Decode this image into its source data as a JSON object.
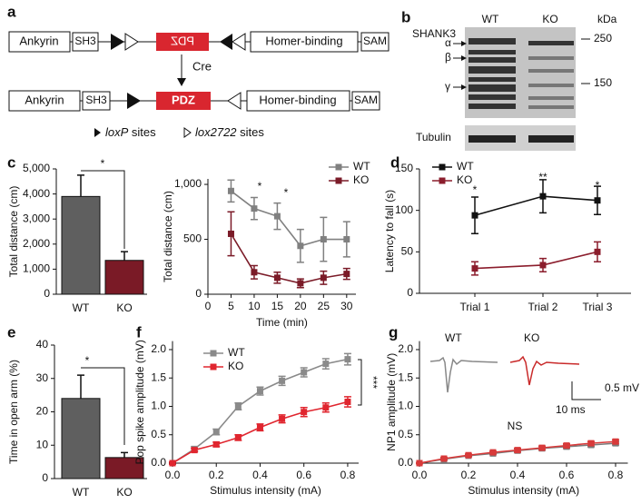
{
  "panel_labels": [
    "a",
    "b",
    "c",
    "d",
    "e",
    "f",
    "g"
  ],
  "diagram": {
    "top": [
      "Ankyrin",
      "SH3",
      "PDZ",
      "Homer-binding",
      "SAM"
    ],
    "enzyme": "Cre",
    "bottom": [
      "Ankyrin",
      "SH3",
      "PDZ",
      "Homer-binding",
      "SAM"
    ],
    "legend": [
      {
        "name": "loxP",
        "suffix": "sites"
      },
      {
        "name": "lox2722",
        "suffix": "sites"
      }
    ]
  },
  "blot": {
    "lanes": [
      "WT",
      "KO"
    ],
    "unit": "kDa",
    "protein": "SHANK3",
    "isoforms": [
      "α",
      "β",
      "γ"
    ],
    "markers": [
      "250",
      "150"
    ],
    "control": "Tubulin"
  },
  "chart_data": [
    {
      "type": "bar",
      "categories": [
        "WT",
        "KO"
      ],
      "values": [
        3900,
        1350
      ],
      "errors": [
        850,
        350
      ],
      "colors": [
        "#5f5f5f",
        "#7a1a26"
      ],
      "y_label": "Total distance (cm)",
      "ylim": [
        0,
        5000
      ],
      "yticks": [
        0,
        {
          "value": 1000,
          "label": "1,000"
        },
        {
          "value": 2000,
          "label": "2,000"
        },
        {
          "value": 3000,
          "label": "3,000"
        },
        {
          "value": 4000,
          "label": "4,000"
        },
        {
          "value": 5000,
          "label": "5,000"
        }
      ],
      "annotations": [
        "*"
      ]
    },
    {
      "type": "line",
      "x": [
        5,
        10,
        15,
        20,
        25,
        30
      ],
      "series": [
        {
          "name": "WT",
          "color": "#808080",
          "values": [
            940,
            780,
            710,
            440,
            500,
            500
          ],
          "errors": [
            100,
            100,
            120,
            150,
            200,
            160
          ]
        },
        {
          "name": "KO",
          "color": "#7b1b28",
          "values": [
            550,
            200,
            150,
            100,
            150,
            185
          ],
          "errors": [
            200,
            60,
            50,
            40,
            60,
            50
          ]
        }
      ],
      "x_label": "Time (min)",
      "y_label": "Total distance (cm)",
      "xlim": [
        0,
        32
      ],
      "xticks": [
        0,
        5,
        10,
        15,
        20,
        25,
        30
      ],
      "ylim": [
        0,
        1050
      ],
      "yticks": [
        0,
        500,
        {
          "value": 1000,
          "label": "1,000"
        }
      ],
      "annotations": [
        "*",
        "*"
      ],
      "legend": "upper right"
    },
    {
      "type": "line",
      "categories": [
        "Trial 1",
        "Trial 2",
        "Trial 3"
      ],
      "series": [
        {
          "name": "WT",
          "color": "#111111",
          "values": [
            94,
            117,
            112
          ],
          "errors": [
            22,
            20,
            17
          ]
        },
        {
          "name": "KO",
          "color": "#8b1d2c",
          "values": [
            30,
            34,
            50
          ],
          "errors": [
            8,
            8,
            12
          ]
        }
      ],
      "y_label": "Latency to fall (s)",
      "ylim": [
        0,
        150
      ],
      "yticks": [
        0,
        50,
        100,
        150
      ],
      "annotations": [
        "*",
        "**",
        "*"
      ],
      "legend": "upper left"
    },
    {
      "type": "bar",
      "categories": [
        "WT",
        "KO"
      ],
      "values": [
        24,
        6.3
      ],
      "errors": [
        7,
        1.5
      ],
      "colors": [
        "#5f5f5f",
        "#7a1a26"
      ],
      "y_label": "Time in open arm (%)",
      "ylim": [
        0,
        40
      ],
      "yticks": [
        0,
        10,
        20,
        30,
        40
      ],
      "annotations": [
        "*"
      ]
    },
    {
      "type": "line",
      "x": [
        0,
        0.1,
        0.2,
        0.3,
        0.4,
        0.5,
        0.6,
        0.7,
        0.8
      ],
      "series": [
        {
          "name": "WT",
          "color": "#8a8a8a",
          "values": [
            0,
            0.25,
            0.55,
            1.0,
            1.27,
            1.45,
            1.6,
            1.75,
            1.83
          ],
          "errors": [
            0.02,
            0.04,
            0.05,
            0.06,
            0.07,
            0.08,
            0.08,
            0.09,
            0.1
          ]
        },
        {
          "name": "KO",
          "color": "#e0262f",
          "values": [
            0,
            0.23,
            0.33,
            0.45,
            0.63,
            0.78,
            0.9,
            0.98,
            1.08
          ],
          "errors": [
            0.02,
            0.03,
            0.04,
            0.05,
            0.06,
            0.07,
            0.08,
            0.08,
            0.09
          ]
        }
      ],
      "x_label": "Stimulus intensity (mA)",
      "y_label": "Pop spike amplitude (mV)",
      "xlim": [
        0,
        0.85
      ],
      "xticks": [
        {
          "value": 0,
          "label": "0.0"
        },
        {
          "value": 0.2,
          "label": "0.2"
        },
        {
          "value": 0.4,
          "label": "0.4"
        },
        {
          "value": 0.6,
          "label": "0.6"
        },
        {
          "value": 0.8,
          "label": "0.8"
        }
      ],
      "ylim": [
        0,
        2.15
      ],
      "yticks": [
        {
          "value": 0,
          "label": "0.0"
        },
        {
          "value": 0.5,
          "label": "0.5"
        },
        {
          "value": 1,
          "label": "1.0"
        },
        {
          "value": 1.5,
          "label": "1.5"
        },
        {
          "value": 2,
          "label": "2.0"
        }
      ],
      "annotations": [
        "***"
      ],
      "legend": "upper left"
    },
    {
      "type": "line",
      "x": [
        0,
        0.1,
        0.2,
        0.3,
        0.4,
        0.5,
        0.6,
        0.7,
        0.8
      ],
      "series": [
        {
          "name": "WT",
          "color": "#7a7a7a",
          "values": [
            0,
            0.07,
            0.13,
            0.17,
            0.22,
            0.26,
            0.29,
            0.32,
            0.35
          ],
          "errors": [
            0.01,
            0.02,
            0.02,
            0.02,
            0.03,
            0.03,
            0.03,
            0.03,
            0.03
          ]
        },
        {
          "name": "KO",
          "color": "#d83a3a",
          "values": [
            0,
            0.08,
            0.14,
            0.19,
            0.23,
            0.27,
            0.31,
            0.35,
            0.38
          ],
          "errors": [
            0.01,
            0.02,
            0.02,
            0.02,
            0.03,
            0.03,
            0.03,
            0.03,
            0.03
          ]
        }
      ],
      "x_label": "Stimulus intensity (mA)",
      "y_label": "NP1 amplitude (mV)",
      "xlim": [
        0,
        0.85
      ],
      "xticks": [
        {
          "value": 0,
          "label": "0.0"
        },
        {
          "value": 0.2,
          "label": "0.2"
        },
        {
          "value": 0.4,
          "label": "0.4"
        },
        {
          "value": 0.6,
          "label": "0.6"
        },
        {
          "value": 0.8,
          "label": "0.8"
        }
      ],
      "ylim": [
        0,
        2.15
      ],
      "yticks": [
        {
          "value": 0,
          "label": "0.0"
        },
        {
          "value": 0.5,
          "label": "0.5"
        },
        {
          "value": 1,
          "label": "1.0"
        },
        {
          "value": 1.5,
          "label": "1.5"
        },
        {
          "value": 2,
          "label": "2.0"
        }
      ],
      "annotations": [
        "NS"
      ],
      "trace_labels": [
        "WT",
        "KO"
      ],
      "scale_bar": [
        "0.5 mV",
        "10 ms"
      ]
    }
  ]
}
